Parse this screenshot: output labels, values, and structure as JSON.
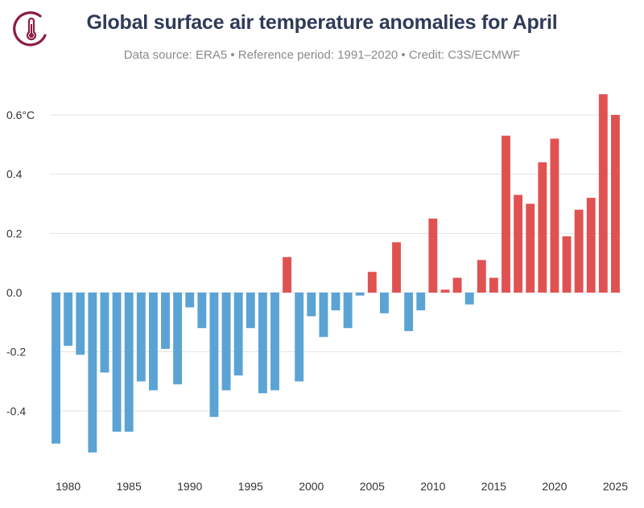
{
  "header": {
    "title": "Global surface air temperature anomalies for April",
    "subtitle": "Data source: ERA5 • Reference period: 1991–2020 • Credit: C3S/ECMWF",
    "logo_icon": "thermometer-icon"
  },
  "colors": {
    "positive": "#e05252",
    "negative": "#5ba3d4",
    "title": "#2f3a57",
    "grid": "#e3e3e3",
    "logo": "#8b1e3f"
  },
  "chart_data": {
    "type": "bar",
    "title": "Global surface air temperature anomalies for April",
    "xlabel": "",
    "ylabel": "",
    "unit": "°C",
    "ylim": [
      -0.6,
      0.7
    ],
    "y_ticks": [
      {
        "value": 0.6,
        "label": "0.6°C"
      },
      {
        "value": 0.4,
        "label": "0.4"
      },
      {
        "value": 0.2,
        "label": "0.2"
      },
      {
        "value": 0.0,
        "label": "0.0"
      },
      {
        "value": -0.2,
        "label": "-0.2"
      },
      {
        "value": -0.4,
        "label": "-0.4"
      }
    ],
    "x_ticks": [
      "1980",
      "1985",
      "1990",
      "1995",
      "2000",
      "2005",
      "2010",
      "2015",
      "2020",
      "2025"
    ],
    "grid": true,
    "categories": [
      1979,
      1980,
      1981,
      1982,
      1983,
      1984,
      1985,
      1986,
      1987,
      1988,
      1989,
      1990,
      1991,
      1992,
      1993,
      1994,
      1995,
      1996,
      1997,
      1998,
      1999,
      2000,
      2001,
      2002,
      2003,
      2004,
      2005,
      2006,
      2007,
      2008,
      2009,
      2010,
      2011,
      2012,
      2013,
      2014,
      2015,
      2016,
      2017,
      2018,
      2019,
      2020,
      2021,
      2022,
      2023,
      2024,
      2025
    ],
    "values": [
      -0.51,
      -0.18,
      -0.21,
      -0.54,
      -0.27,
      -0.47,
      -0.47,
      -0.3,
      -0.33,
      -0.19,
      -0.31,
      -0.05,
      -0.12,
      -0.42,
      -0.33,
      -0.28,
      -0.12,
      -0.34,
      -0.33,
      0.12,
      -0.3,
      -0.08,
      -0.15,
      -0.06,
      -0.12,
      -0.01,
      0.07,
      -0.07,
      0.17,
      -0.13,
      -0.06,
      0.25,
      0.01,
      0.05,
      -0.04,
      0.11,
      0.05,
      0.53,
      0.33,
      0.3,
      0.44,
      0.52,
      0.19,
      0.28,
      0.32,
      0.67,
      0.6
    ]
  }
}
